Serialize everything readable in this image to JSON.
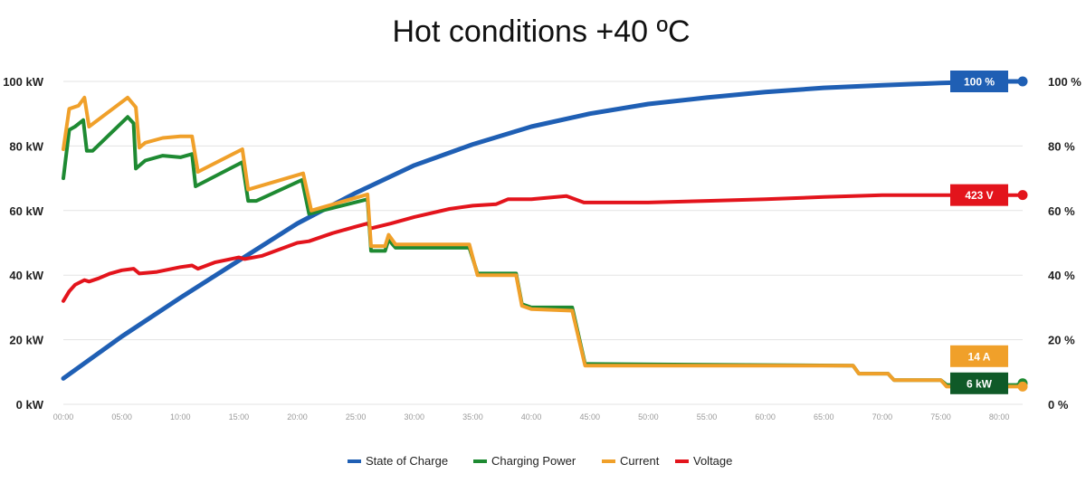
{
  "chart_data": {
    "type": "line",
    "title": "Hot conditions +40 ºC",
    "xlabel": "",
    "ylabel": "",
    "x_range": [
      0,
      82
    ],
    "x_ticks": [
      {
        "value": 0,
        "label": "00:00"
      },
      {
        "value": 5,
        "label": "05:00"
      },
      {
        "value": 10,
        "label": "10:00"
      },
      {
        "value": 15,
        "label": "15:00"
      },
      {
        "value": 20,
        "label": "20:00"
      },
      {
        "value": 25,
        "label": "25:00"
      },
      {
        "value": 30,
        "label": "30:00"
      },
      {
        "value": 35,
        "label": "35:00"
      },
      {
        "value": 40,
        "label": "40:00"
      },
      {
        "value": 45,
        "label": "45:00"
      },
      {
        "value": 50,
        "label": "50:00"
      },
      {
        "value": 55,
        "label": "55:00"
      },
      {
        "value": 60,
        "label": "60:00"
      },
      {
        "value": 65,
        "label": "65:00"
      },
      {
        "value": 70,
        "label": "70:00"
      },
      {
        "value": 75,
        "label": "75:00"
      },
      {
        "value": 80,
        "label": "80:00"
      }
    ],
    "y_left": {
      "range": [
        0,
        100
      ],
      "ticks": [
        {
          "value": 0,
          "label": "0 kW"
        },
        {
          "value": 20,
          "label": "20 kW"
        },
        {
          "value": 40,
          "label": "40 kW"
        },
        {
          "value": 60,
          "label": "60 kW"
        },
        {
          "value": 80,
          "label": "80 kW"
        },
        {
          "value": 100,
          "label": "100 kW"
        }
      ]
    },
    "y_right": {
      "range": [
        0,
        100
      ],
      "ticks": [
        {
          "value": 0,
          "label": "0 %"
        },
        {
          "value": 20,
          "label": "20 %"
        },
        {
          "value": 40,
          "label": "40 %"
        },
        {
          "value": 60,
          "label": "60 %"
        },
        {
          "value": 80,
          "label": "80 %"
        },
        {
          "value": 100,
          "label": "100 %"
        }
      ]
    },
    "grid": true,
    "legend_position": "bottom",
    "series": [
      {
        "name": "State of Charge",
        "color": "#1f5fb4",
        "end_label": "100 %",
        "end_marker": true,
        "points": [
          [
            0,
            8
          ],
          [
            5,
            21
          ],
          [
            10,
            33
          ],
          [
            15,
            44.5
          ],
          [
            20,
            56
          ],
          [
            25,
            65.5
          ],
          [
            30,
            74
          ],
          [
            35,
            80.5
          ],
          [
            40,
            86
          ],
          [
            45,
            90
          ],
          [
            50,
            93
          ],
          [
            55,
            95
          ],
          [
            60,
            96.7
          ],
          [
            65,
            98
          ],
          [
            70,
            98.8
          ],
          [
            75,
            99.5
          ],
          [
            80,
            100
          ],
          [
            82,
            100
          ]
        ]
      },
      {
        "name": "Charging Power",
        "color": "#1e8a32",
        "end_label": "6 kW",
        "end_marker": true,
        "points": [
          [
            0,
            70
          ],
          [
            0.5,
            85
          ],
          [
            1,
            86
          ],
          [
            1.7,
            88
          ],
          [
            2,
            78.5
          ],
          [
            2.5,
            78.5
          ],
          [
            5.5,
            89
          ],
          [
            6,
            87
          ],
          [
            6.2,
            73
          ],
          [
            7,
            75.5
          ],
          [
            8.5,
            77
          ],
          [
            10,
            76.5
          ],
          [
            11,
            77.5
          ],
          [
            11.3,
            67.5
          ],
          [
            15.3,
            75
          ],
          [
            15.8,
            63
          ],
          [
            16.5,
            63
          ],
          [
            20.4,
            69.5
          ],
          [
            21,
            59
          ],
          [
            26,
            63.5
          ],
          [
            26.3,
            47.5
          ],
          [
            27.5,
            47.5
          ],
          [
            27.8,
            51
          ],
          [
            28.4,
            48.5
          ],
          [
            30,
            48.5
          ],
          [
            34.7,
            48.5
          ],
          [
            35.4,
            40.5
          ],
          [
            38.7,
            40.5
          ],
          [
            39.2,
            31
          ],
          [
            40,
            30
          ],
          [
            43.5,
            30
          ],
          [
            44.6,
            12.5
          ],
          [
            45,
            12.5
          ],
          [
            67.5,
            12
          ],
          [
            68,
            9.5
          ],
          [
            70.5,
            9.5
          ],
          [
            71,
            7.5
          ],
          [
            75,
            7.5
          ],
          [
            75.5,
            6
          ],
          [
            81.5,
            6
          ],
          [
            82,
            6.5
          ]
        ]
      },
      {
        "name": "Current",
        "color": "#f0a02a",
        "end_label": "14 A",
        "end_marker": true,
        "points": [
          [
            0,
            79
          ],
          [
            0.5,
            91.5
          ],
          [
            1.3,
            92.5
          ],
          [
            1.8,
            95
          ],
          [
            2.2,
            86
          ],
          [
            5.5,
            95
          ],
          [
            6.2,
            92
          ],
          [
            6.5,
            79.5
          ],
          [
            7,
            81
          ],
          [
            8.5,
            82.5
          ],
          [
            10,
            83
          ],
          [
            11,
            83
          ],
          [
            11.5,
            72
          ],
          [
            15.3,
            79
          ],
          [
            15.8,
            66.5
          ],
          [
            20.5,
            71.5
          ],
          [
            21.2,
            60
          ],
          [
            26,
            65
          ],
          [
            26.3,
            49
          ],
          [
            27.5,
            49
          ],
          [
            27.8,
            52.5
          ],
          [
            28.4,
            49.5
          ],
          [
            30,
            49.5
          ],
          [
            34.7,
            49.5
          ],
          [
            35.4,
            40
          ],
          [
            38.7,
            40
          ],
          [
            39.2,
            30.5
          ],
          [
            40,
            29.5
          ],
          [
            43.5,
            29
          ],
          [
            44.6,
            12
          ],
          [
            45,
            12
          ],
          [
            67.5,
            12
          ],
          [
            68,
            9.5
          ],
          [
            70.5,
            9.5
          ],
          [
            71,
            7.5
          ],
          [
            75,
            7.5
          ],
          [
            75.5,
            5.5
          ],
          [
            82,
            5.5
          ]
        ]
      },
      {
        "name": "Voltage",
        "color": "#e3141c",
        "end_label": "423 V",
        "end_marker": true,
        "points": [
          [
            0,
            32
          ],
          [
            0.5,
            35
          ],
          [
            1,
            37
          ],
          [
            1.8,
            38.5
          ],
          [
            2.2,
            38
          ],
          [
            3,
            39
          ],
          [
            4,
            40.5
          ],
          [
            5,
            41.5
          ],
          [
            6,
            42
          ],
          [
            6.5,
            40.5
          ],
          [
            8,
            41
          ],
          [
            10,
            42.5
          ],
          [
            11,
            43
          ],
          [
            11.5,
            42
          ],
          [
            13,
            44
          ],
          [
            15,
            45.5
          ],
          [
            15.5,
            45
          ],
          [
            17,
            46
          ],
          [
            20,
            50
          ],
          [
            21,
            50.5
          ],
          [
            23,
            53
          ],
          [
            25,
            55
          ],
          [
            26,
            56
          ],
          [
            26.3,
            54.5
          ],
          [
            28,
            56
          ],
          [
            30,
            58
          ],
          [
            33,
            60.5
          ],
          [
            35,
            61.5
          ],
          [
            37,
            62
          ],
          [
            38,
            63.5
          ],
          [
            40,
            63.5
          ],
          [
            43,
            64.5
          ],
          [
            44.5,
            62.5
          ],
          [
            50,
            62.5
          ],
          [
            55,
            63
          ],
          [
            60,
            63.5
          ],
          [
            65,
            64.2
          ],
          [
            70,
            64.8
          ],
          [
            75,
            64.8
          ],
          [
            82,
            64.8
          ]
        ]
      }
    ]
  }
}
